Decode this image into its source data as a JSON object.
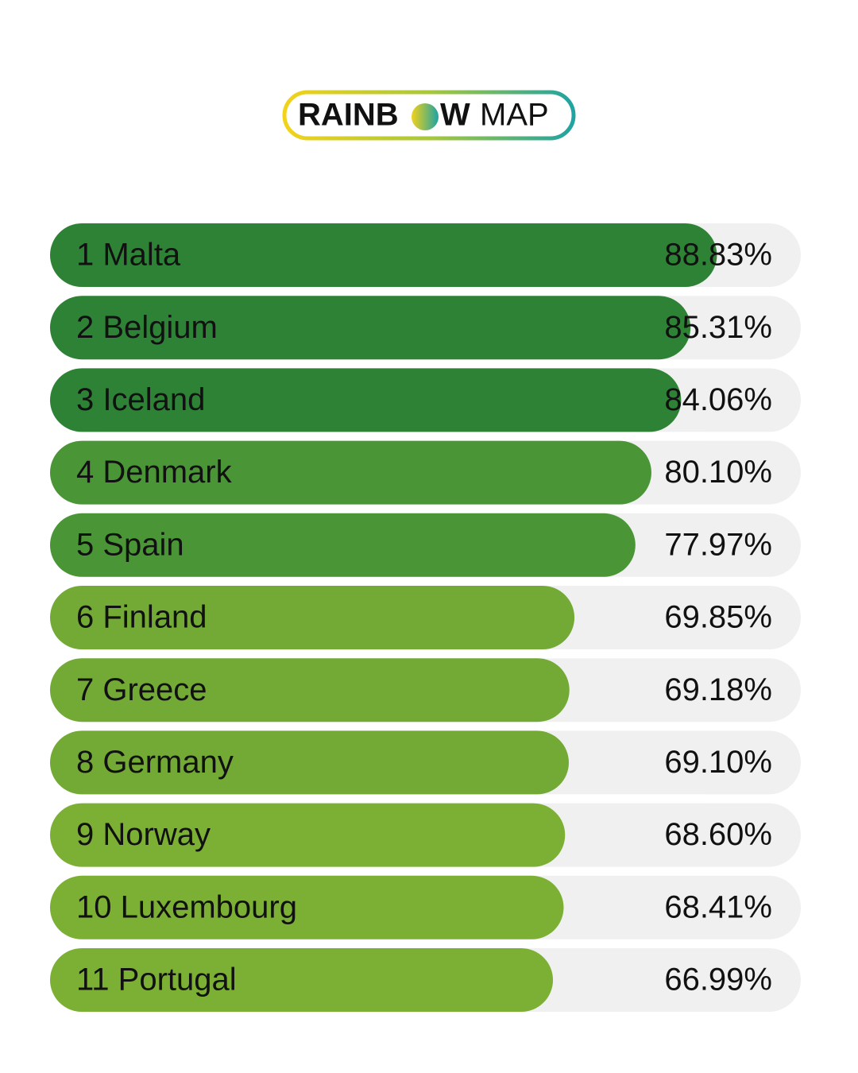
{
  "logo": {
    "left": "RAINB",
    "bold": "W",
    "light": "MAP"
  },
  "chart_data": {
    "type": "bar",
    "orientation": "horizontal",
    "categories": [
      "1 Malta",
      "2 Belgium",
      "3 Iceland",
      "4 Denmark",
      "5 Spain",
      "6 Finland",
      "7 Greece",
      "8 Germany",
      "9 Norway",
      "10 Luxembourg",
      "11 Portugal"
    ],
    "values": [
      88.83,
      85.31,
      84.06,
      80.1,
      77.97,
      69.85,
      69.18,
      69.1,
      68.6,
      68.41,
      66.99
    ],
    "value_labels": [
      "88.83%",
      "85.31%",
      "84.06%",
      "80.10%",
      "77.97%",
      "69.85%",
      "69.18%",
      "69.10%",
      "68.60%",
      "68.41%",
      "66.99%"
    ],
    "colors": [
      "#2e8236",
      "#2e8236",
      "#2e8236",
      "#4a9535",
      "#4a9535",
      "#72aa35",
      "#72aa35",
      "#72aa35",
      "#7cb034",
      "#7cb034",
      "#7cb034"
    ],
    "track_color": "#f0f0f0",
    "xlim": [
      0,
      100
    ]
  }
}
